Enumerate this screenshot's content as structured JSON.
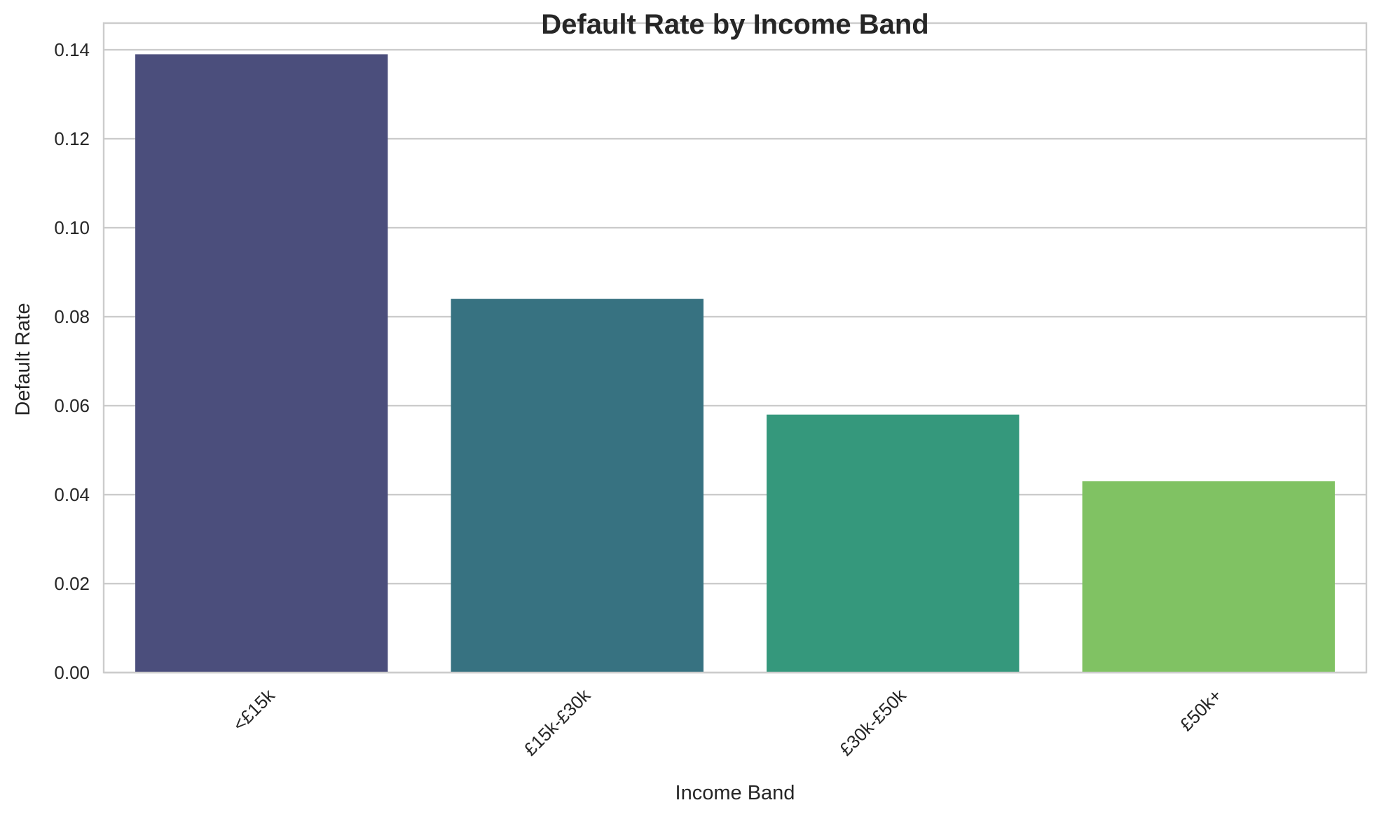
{
  "chart_data": {
    "type": "bar",
    "title": "Default Rate by Income Band",
    "xlabel": "Income Band",
    "ylabel": "Default Rate",
    "categories": [
      "<£15k",
      "£15k-£30k",
      "£30k-£50k",
      "£50k+"
    ],
    "values": [
      0.139,
      0.084,
      0.058,
      0.043
    ],
    "colors": [
      "#4b4e7c",
      "#377281",
      "#35987c",
      "#80c263"
    ],
    "ylim": [
      0,
      0.146
    ],
    "yticks": [
      0.0,
      0.02,
      0.04,
      0.06,
      0.08,
      0.1,
      0.12,
      0.14
    ],
    "ytick_labels": [
      "0.00",
      "0.02",
      "0.04",
      "0.06",
      "0.08",
      "0.10",
      "0.12",
      "0.14"
    ],
    "grid": true,
    "grid_color": "#cccccc",
    "spine_color": "#cccccc",
    "xtick_rotation": -45
  }
}
